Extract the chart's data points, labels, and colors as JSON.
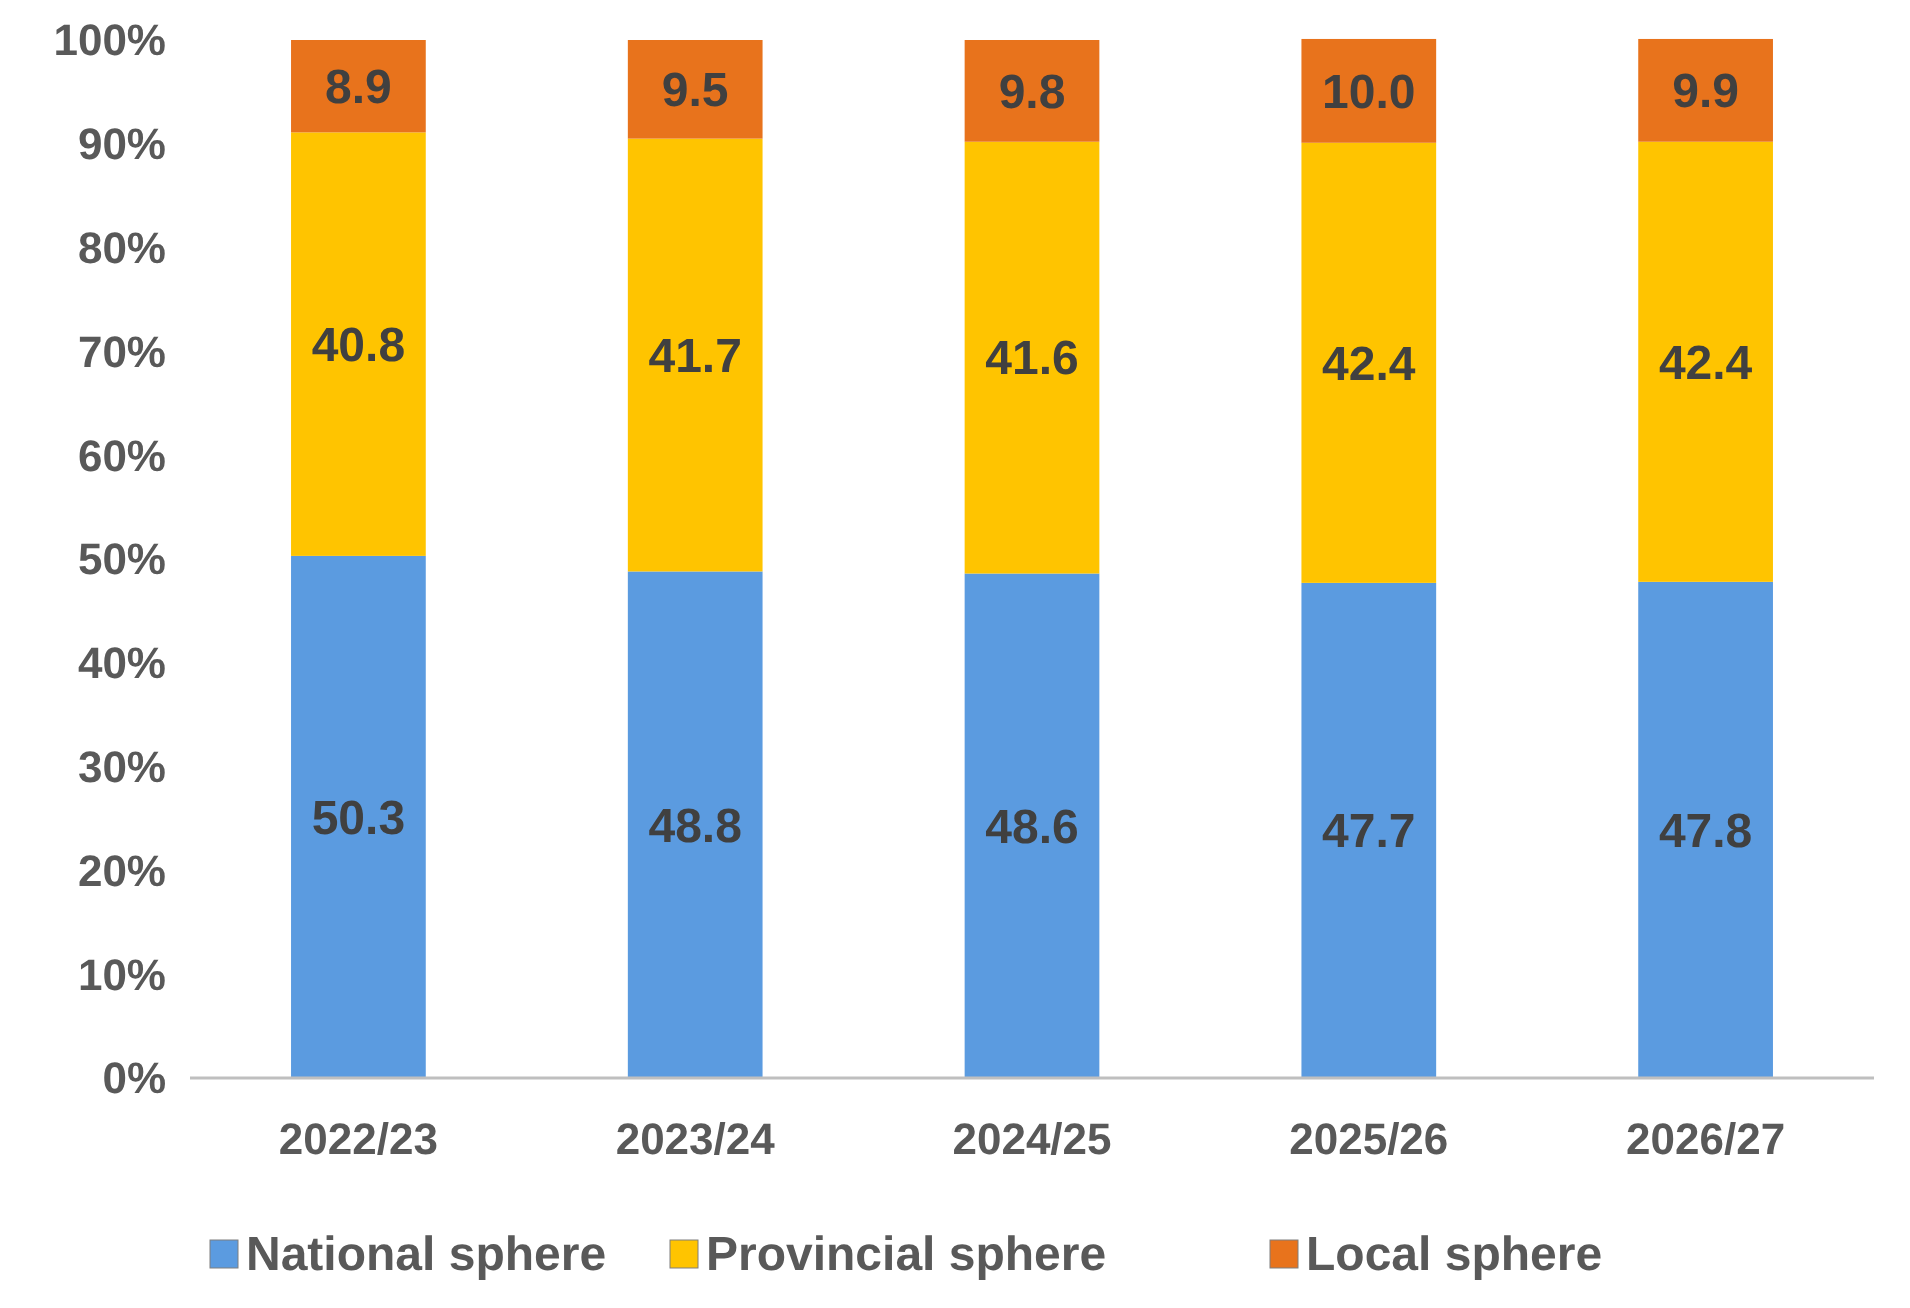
{
  "chart_data": {
    "type": "bar",
    "stacked": true,
    "categories": [
      "2022/23",
      "2023/24",
      "2024/25",
      "2025/26",
      "2026/27"
    ],
    "series": [
      {
        "name": "National sphere",
        "color": "#5b9be0",
        "values": [
          50.3,
          48.8,
          48.6,
          47.7,
          47.8
        ]
      },
      {
        "name": "Provincial sphere",
        "color": "#ffc400",
        "values": [
          40.8,
          41.7,
          41.6,
          42.4,
          42.4
        ]
      },
      {
        "name": "Local sphere",
        "color": "#e8731c",
        "values": [
          8.9,
          9.5,
          9.8,
          10.0,
          9.9
        ]
      }
    ],
    "ylim": [
      0,
      100
    ],
    "yticks": [
      {
        "value": 0,
        "label": "0%"
      },
      {
        "value": 10,
        "label": "10%"
      },
      {
        "value": 20,
        "label": "20%"
      },
      {
        "value": 30,
        "label": "30%"
      },
      {
        "value": 40,
        "label": "40%"
      },
      {
        "value": 50,
        "label": "50%"
      },
      {
        "value": 60,
        "label": "60%"
      },
      {
        "value": 70,
        "label": "70%"
      },
      {
        "value": 80,
        "label": "80%"
      },
      {
        "value": 90,
        "label": "90%"
      },
      {
        "value": 100,
        "label": "100%"
      }
    ],
    "value_labels": [
      [
        "50.3",
        "48.8",
        "48.6",
        "47.7",
        "47.8"
      ],
      [
        "40.8",
        "41.7",
        "41.6",
        "42.4",
        "42.4"
      ],
      [
        "8.9",
        "9.5",
        "9.8",
        "10.0",
        "9.9"
      ]
    ],
    "grid": false,
    "legend": "bottom"
  }
}
